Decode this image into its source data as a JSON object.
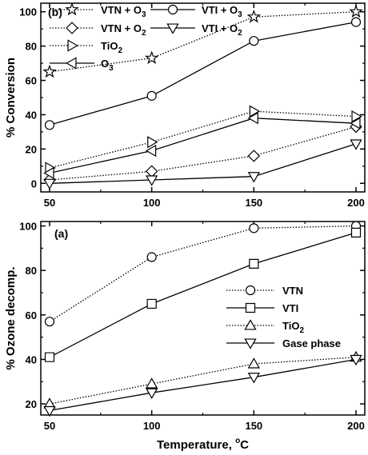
{
  "chart_data": [
    {
      "panel": "(b)",
      "type": "line",
      "ylabel": "% Conversion",
      "xlabel": "",
      "x": [
        50,
        100,
        150,
        200
      ],
      "xlim": [
        50,
        200
      ],
      "ylim": [
        -5,
        105
      ],
      "yticks": [
        0,
        20,
        40,
        60,
        80,
        100
      ],
      "xticks": [
        50,
        100,
        150,
        200
      ],
      "grid": false,
      "legend_position": "top-left",
      "series": [
        {
          "name": "VTN + O",
          "sub": "3",
          "values": [
            65,
            73,
            97,
            100
          ],
          "marker": "star",
          "line": "dotted"
        },
        {
          "name": "VTI + O",
          "sub": "3",
          "values": [
            34,
            51,
            83,
            94
          ],
          "marker": "circle",
          "line": "solid"
        },
        {
          "name": "VTN + O",
          "sub": "2",
          "values": [
            2,
            7,
            16,
            33
          ],
          "marker": "diamond",
          "line": "dotted"
        },
        {
          "name": "VTI + O",
          "sub": "2",
          "values": [
            0,
            2,
            4,
            23
          ],
          "marker": "triangle-down",
          "line": "solid"
        },
        {
          "name": "TiO",
          "sub": "2",
          "values": [
            9,
            24,
            42,
            39
          ],
          "marker": "triangle-right",
          "line": "dotted"
        },
        {
          "name": "O",
          "sub": "3",
          "values": [
            6,
            19,
            38,
            35
          ],
          "marker": "triangle-left",
          "line": "solid"
        }
      ]
    },
    {
      "panel": "(a)",
      "type": "line",
      "ylabel": "% Ozone decomp.",
      "xlabel": "Temperature, ",
      "xlabel_sup": "o",
      "xlabel_unit": "C",
      "x": [
        50,
        100,
        150,
        200
      ],
      "xlim": [
        50,
        200
      ],
      "ylim": [
        15,
        102
      ],
      "yticks": [
        20,
        40,
        60,
        80,
        100
      ],
      "xticks": [
        50,
        100,
        150,
        200
      ],
      "grid": false,
      "legend_position": "center-right",
      "series": [
        {
          "name": "VTN",
          "sub": "",
          "values": [
            57,
            86,
            99,
            100
          ],
          "marker": "circle",
          "line": "dotted"
        },
        {
          "name": "VTI",
          "sub": "",
          "values": [
            41,
            65,
            83,
            97
          ],
          "marker": "square",
          "line": "solid"
        },
        {
          "name": "TiO",
          "sub": "2",
          "values": [
            20,
            29,
            38,
            41
          ],
          "marker": "triangle-up",
          "line": "dotted"
        },
        {
          "name": "Gase phase",
          "sub": "",
          "values": [
            17,
            25,
            32,
            40
          ],
          "marker": "triangle-down",
          "line": "solid"
        }
      ]
    }
  ]
}
